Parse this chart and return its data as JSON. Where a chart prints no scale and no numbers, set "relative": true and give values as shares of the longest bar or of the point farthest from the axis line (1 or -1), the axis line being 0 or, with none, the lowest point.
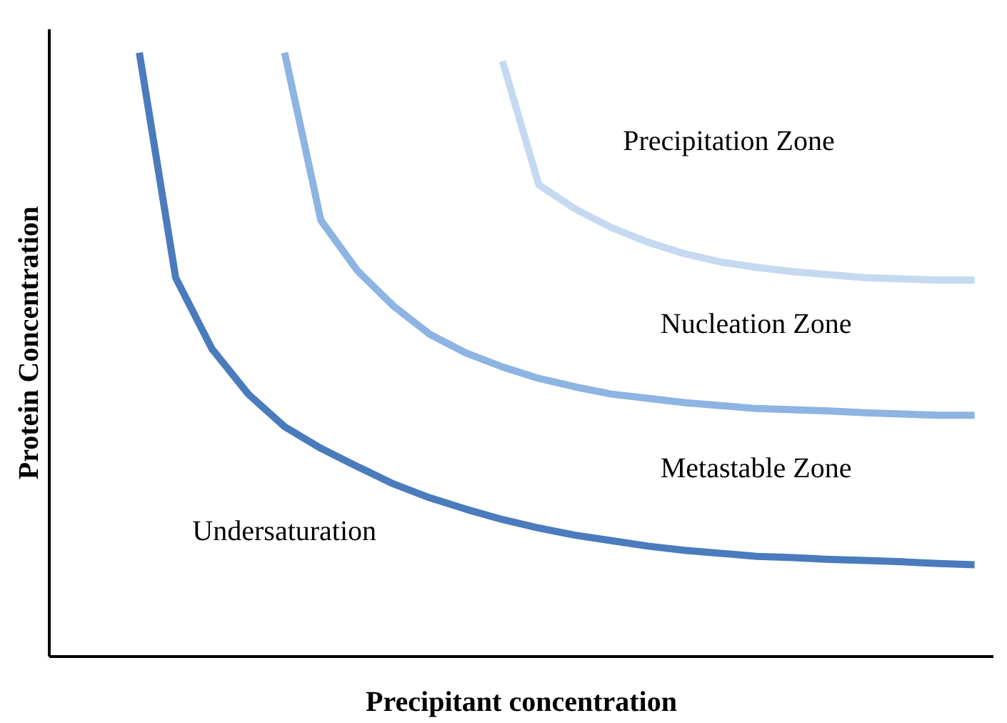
{
  "chart_data": {
    "type": "line",
    "relative": true,
    "xlabel": "Precipitant concentration",
    "ylabel": "Protein Concentration",
    "ylim": [
      0,
      1.04
    ],
    "grid": false,
    "legend": false,
    "marker": "none",
    "line_style": "solid",
    "categories": [
      null,
      null,
      null,
      null,
      null,
      null,
      null,
      null,
      null,
      null,
      null,
      null,
      null,
      null,
      null,
      null,
      null,
      null,
      null,
      null,
      null,
      null,
      null,
      null,
      null,
      null
    ],
    "series": [
      {
        "color": "#4a7bbd",
        "values": [
          null,
          null,
          1.0,
          0.627,
          0.509,
          0.434,
          0.38,
          0.344,
          0.314,
          0.285,
          0.262,
          0.243,
          0.226,
          0.212,
          0.2,
          0.191,
          0.182,
          0.175,
          0.17,
          0.165,
          0.163,
          0.16,
          0.158,
          0.156,
          0.153,
          0.151
        ]
      },
      {
        "color": "#8db4e2",
        "values": [
          null,
          null,
          null,
          null,
          null,
          null,
          1.0,
          0.722,
          0.639,
          0.58,
          0.533,
          0.502,
          0.479,
          0.46,
          0.446,
          0.434,
          0.427,
          0.42,
          0.415,
          0.41,
          0.408,
          0.406,
          0.403,
          0.401,
          0.399,
          0.399
        ]
      },
      {
        "color": "#c5d9f1",
        "values": [
          null,
          null,
          null,
          null,
          null,
          null,
          null,
          null,
          null,
          null,
          null,
          null,
          0.986,
          0.781,
          0.741,
          0.71,
          0.686,
          0.667,
          0.653,
          0.644,
          0.637,
          0.632,
          0.627,
          0.625,
          0.623,
          0.623
        ]
      }
    ],
    "annotations": [
      "Precipitation Zone",
      "Nucleation Zone",
      "Metastable Zone",
      "Undersaturation"
    ]
  }
}
